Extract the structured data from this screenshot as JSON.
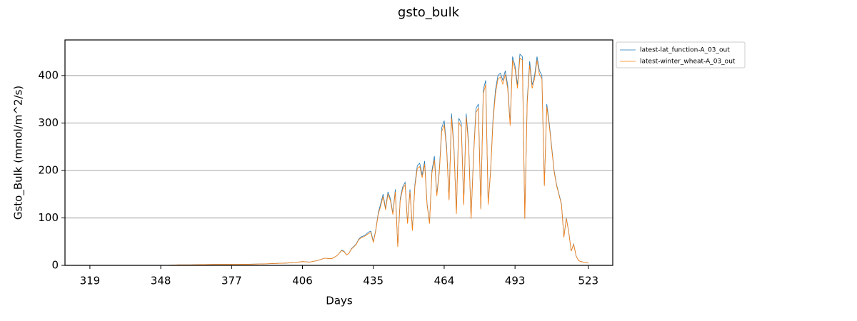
{
  "chart_data": {
    "type": "line",
    "title": "gsto_bulk",
    "xlabel": "Days",
    "ylabel": "Gsto_Bulk (mmol/m^2/s)",
    "x": [
      319,
      330,
      340,
      350,
      355,
      360,
      370,
      380,
      390,
      400,
      403,
      406,
      409,
      412,
      415,
      418,
      420,
      421,
      422,
      423,
      424,
      425,
      426,
      427,
      428,
      429,
      430,
      431,
      432,
      433,
      434,
      435,
      436,
      437,
      438,
      439,
      440,
      441,
      442,
      443,
      444,
      445,
      446,
      447,
      448,
      449,
      450,
      451,
      452,
      453,
      454,
      455,
      456,
      457,
      458,
      459,
      460,
      461,
      462,
      463,
      464,
      465,
      466,
      467,
      468,
      469,
      470,
      471,
      472,
      473,
      474,
      475,
      476,
      477,
      478,
      479,
      480,
      481,
      482,
      483,
      484,
      485,
      486,
      487,
      488,
      489,
      490,
      491,
      492,
      493,
      494,
      495,
      496,
      497,
      498,
      499,
      500,
      501,
      502,
      503,
      504,
      505,
      506,
      507,
      508,
      509,
      510,
      511,
      512,
      513,
      514,
      515,
      516,
      517,
      518,
      519,
      520,
      521,
      522,
      523
    ],
    "series": [
      {
        "name": "latest-lat_function-A_03_out",
        "color": "#1f77b4",
        "values": [
          0,
          0,
          0,
          0,
          1,
          1,
          2,
          2,
          3,
          5,
          6,
          8,
          7,
          10,
          15,
          14,
          20,
          25,
          32,
          30,
          22,
          25,
          35,
          40,
          45,
          55,
          60,
          62,
          65,
          70,
          72,
          50,
          75,
          110,
          130,
          150,
          120,
          155,
          140,
          110,
          160,
          40,
          140,
          165,
          175,
          90,
          160,
          75,
          170,
          210,
          215,
          190,
          220,
          130,
          90,
          200,
          230,
          150,
          200,
          290,
          305,
          250,
          140,
          320,
          250,
          110,
          310,
          300,
          130,
          320,
          260,
          100,
          230,
          330,
          340,
          120,
          370,
          390,
          130,
          200,
          310,
          370,
          400,
          405,
          390,
          410,
          380,
          300,
          440,
          420,
          380,
          445,
          440,
          100,
          350,
          430,
          380,
          400,
          440,
          410,
          400,
          170,
          340,
          300,
          250,
          200,
          170,
          150,
          130,
          60,
          100,
          70,
          30,
          45,
          20,
          10,
          8,
          7,
          6,
          5
        ]
      },
      {
        "name": "latest-winter_wheat-A_03_out",
        "color": "#ff7f0e",
        "values": [
          0,
          0,
          0,
          0,
          1,
          1,
          2,
          2,
          3,
          5,
          6,
          8,
          7,
          10,
          15,
          14,
          20,
          25,
          31,
          29,
          22,
          25,
          34,
          39,
          44,
          54,
          58,
          60,
          63,
          67,
          69,
          48,
          73,
          107,
          125,
          145,
          117,
          150,
          136,
          107,
          155,
          39,
          136,
          160,
          170,
          88,
          155,
          73,
          165,
          204,
          208,
          185,
          213,
          127,
          88,
          195,
          222,
          146,
          195,
          282,
          296,
          243,
          137,
          311,
          243,
          108,
          301,
          292,
          127,
          312,
          253,
          98,
          225,
          322,
          331,
          118,
          362,
          381,
          128,
          196,
          303,
          362,
          392,
          397,
          382,
          402,
          372,
          294,
          432,
          413,
          373,
          437,
          432,
          98,
          343,
          422,
          373,
          393,
          432,
          402,
          393,
          167,
          334,
          295,
          246,
          197,
          168,
          148,
          128,
          59,
          99,
          69,
          30,
          44,
          20,
          10,
          8,
          7,
          6,
          5
        ]
      }
    ],
    "xlim": [
      308.8,
      533
    ],
    "ylim": [
      0,
      475
    ],
    "xticks": [
      319,
      348,
      377,
      406,
      435,
      464,
      493,
      523
    ],
    "yticks": [
      0,
      100,
      200,
      300,
      400
    ],
    "grid": "y",
    "legend": "upper right outside"
  }
}
